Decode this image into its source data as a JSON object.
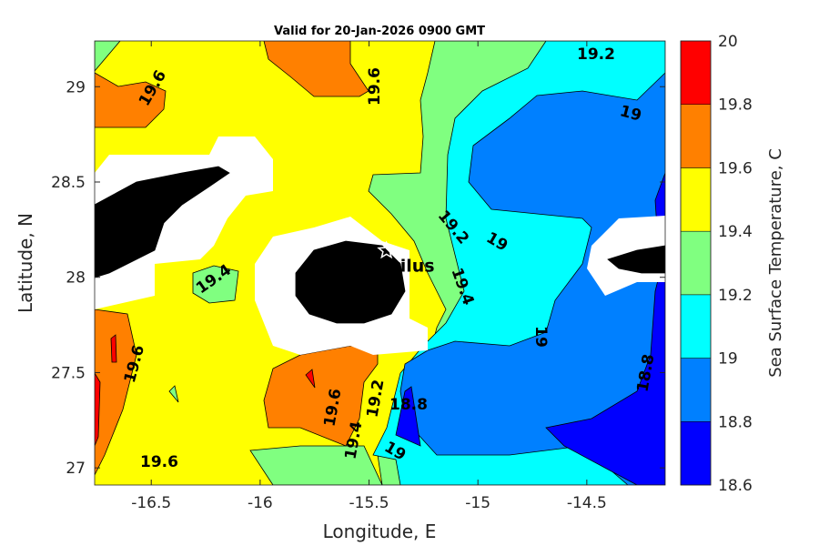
{
  "chart_data": {
    "type": "heatmap",
    "subtype": "filled-contour-map",
    "title": "Valid for 20-Jan-2026 0900 GMT",
    "xlabel": "Longitude, E",
    "ylabel": "Latitude, N",
    "xlim": [
      -16.76,
      -14.14
    ],
    "ylim": [
      26.91,
      29.24
    ],
    "xticks": [
      -16.5,
      -16,
      -15.5,
      -15,
      -14.5
    ],
    "xtick_labels": [
      "-16.5",
      "-16",
      "-15.5",
      "-15",
      "-14.5"
    ],
    "yticks": [
      27,
      27.5,
      28,
      28.5,
      29
    ],
    "ytick_labels": [
      "27",
      "27.5",
      "28",
      "28.5",
      "29"
    ],
    "colorbar": {
      "label": "Sea Surface Temperature, C",
      "levels": [
        18.6,
        18.8,
        19,
        19.2,
        19.4,
        19.6,
        19.8,
        20
      ],
      "level_labels": [
        "18.6",
        "18.8",
        "19",
        "19.2",
        "19.4",
        "19.6",
        "19.8",
        "20"
      ],
      "colors": [
        "#0000ff",
        "#0080ff",
        "#00ffff",
        "#80ff80",
        "#ffff00",
        "#ff8000",
        "#ff0000"
      ]
    },
    "contour_labels": [
      "19.6",
      "19.6",
      "19.2",
      "19",
      "19.2",
      "19",
      "19.4",
      "19.4",
      "19.6",
      "19",
      "18.8",
      "18.8",
      "19.6",
      "19.2",
      "19.4",
      "19",
      "19.6"
    ],
    "marker": {
      "symbol": "star",
      "label": "tilus",
      "lon": -15.42,
      "lat": 28.14
    },
    "land_color": "#000000",
    "mask_color": "#ffffff"
  }
}
